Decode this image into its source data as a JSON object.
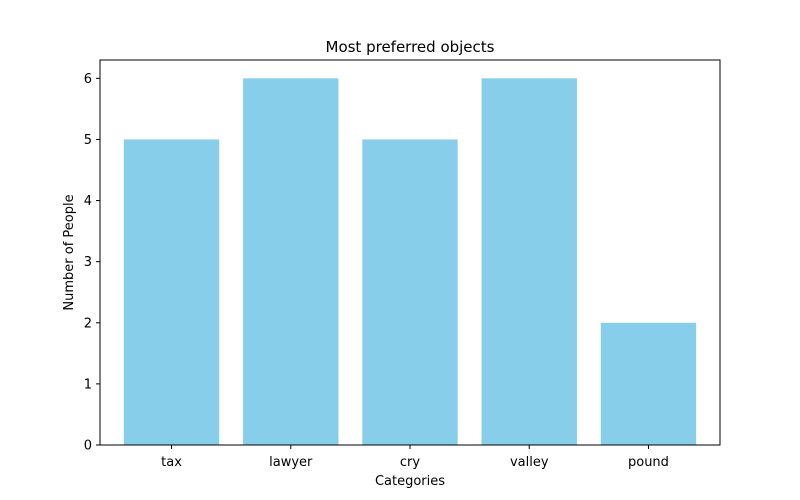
{
  "chart_data": {
    "type": "bar",
    "title": "Most preferred objects",
    "xlabel": "Categories",
    "ylabel": "Number of People",
    "categories": [
      "tax",
      "lawyer",
      "cry",
      "valley",
      "pound"
    ],
    "values": [
      5,
      6,
      5,
      6,
      2
    ],
    "ylim": [
      0,
      6.3
    ],
    "yticks": [
      0,
      1,
      2,
      3,
      4,
      5,
      6
    ],
    "bar_color": "#87CEEB",
    "grid": false,
    "legend": "none"
  }
}
